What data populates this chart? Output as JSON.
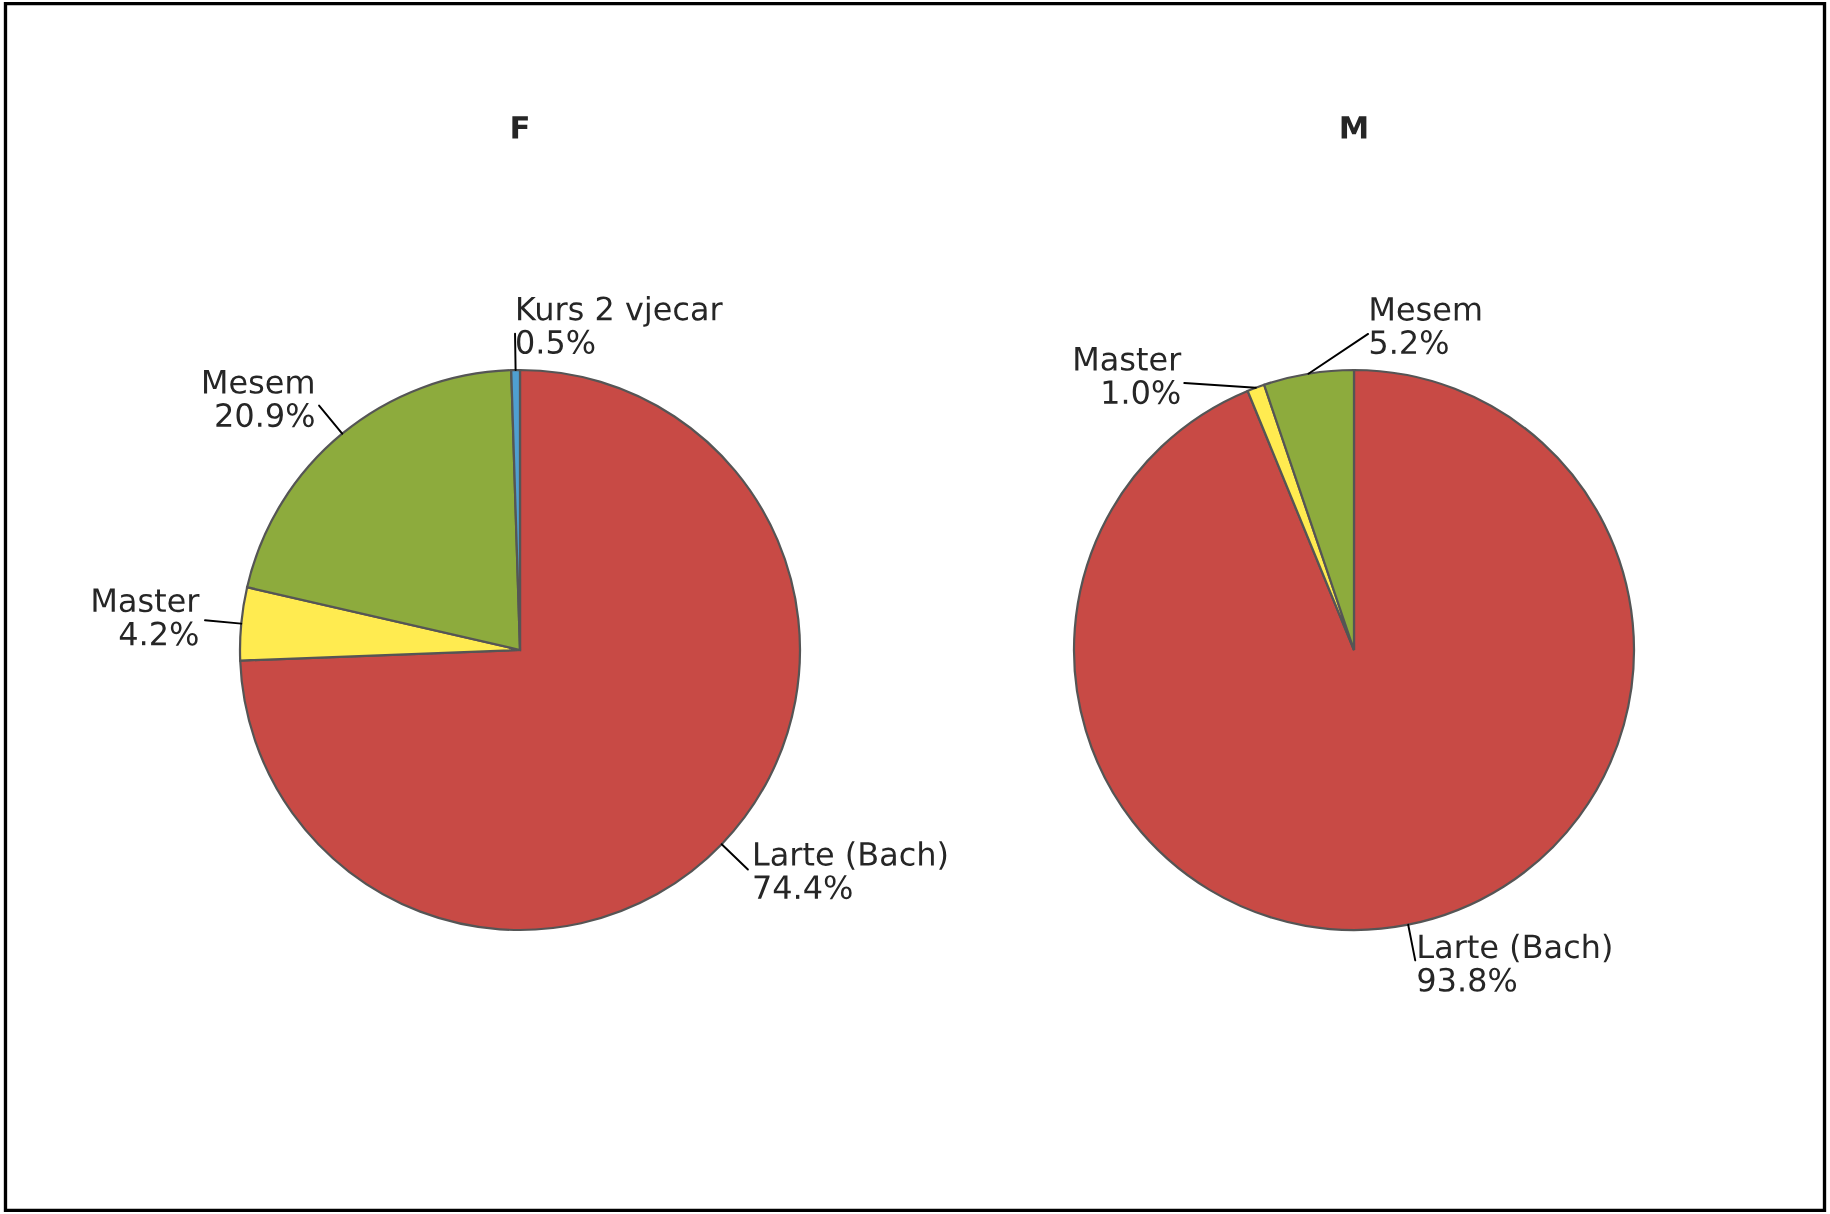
{
  "chart_data": [
    {
      "type": "pie",
      "title": "F",
      "categories": [
        "Larte (Bach)",
        "Master",
        "Mesem",
        "Kurs 2 vjecar"
      ],
      "values": [
        74.4,
        4.2,
        20.9,
        0.5
      ],
      "value_labels": [
        "74.4%",
        "4.2%",
        "20.9%",
        "0.5%"
      ],
      "colors": [
        "#c84a45",
        "#ffeb50",
        "#8dab3d",
        "#4f9fd0"
      ],
      "legend": false
    },
    {
      "type": "pie",
      "title": "M",
      "categories": [
        "Larte (Bach)",
        "Master",
        "Mesem"
      ],
      "values": [
        93.8,
        1.0,
        5.2
      ],
      "value_labels": [
        "93.8%",
        "1.0%",
        "5.2%"
      ],
      "colors": [
        "#c84a45",
        "#ffeb50",
        "#8dab3d"
      ],
      "legend": false
    }
  ]
}
